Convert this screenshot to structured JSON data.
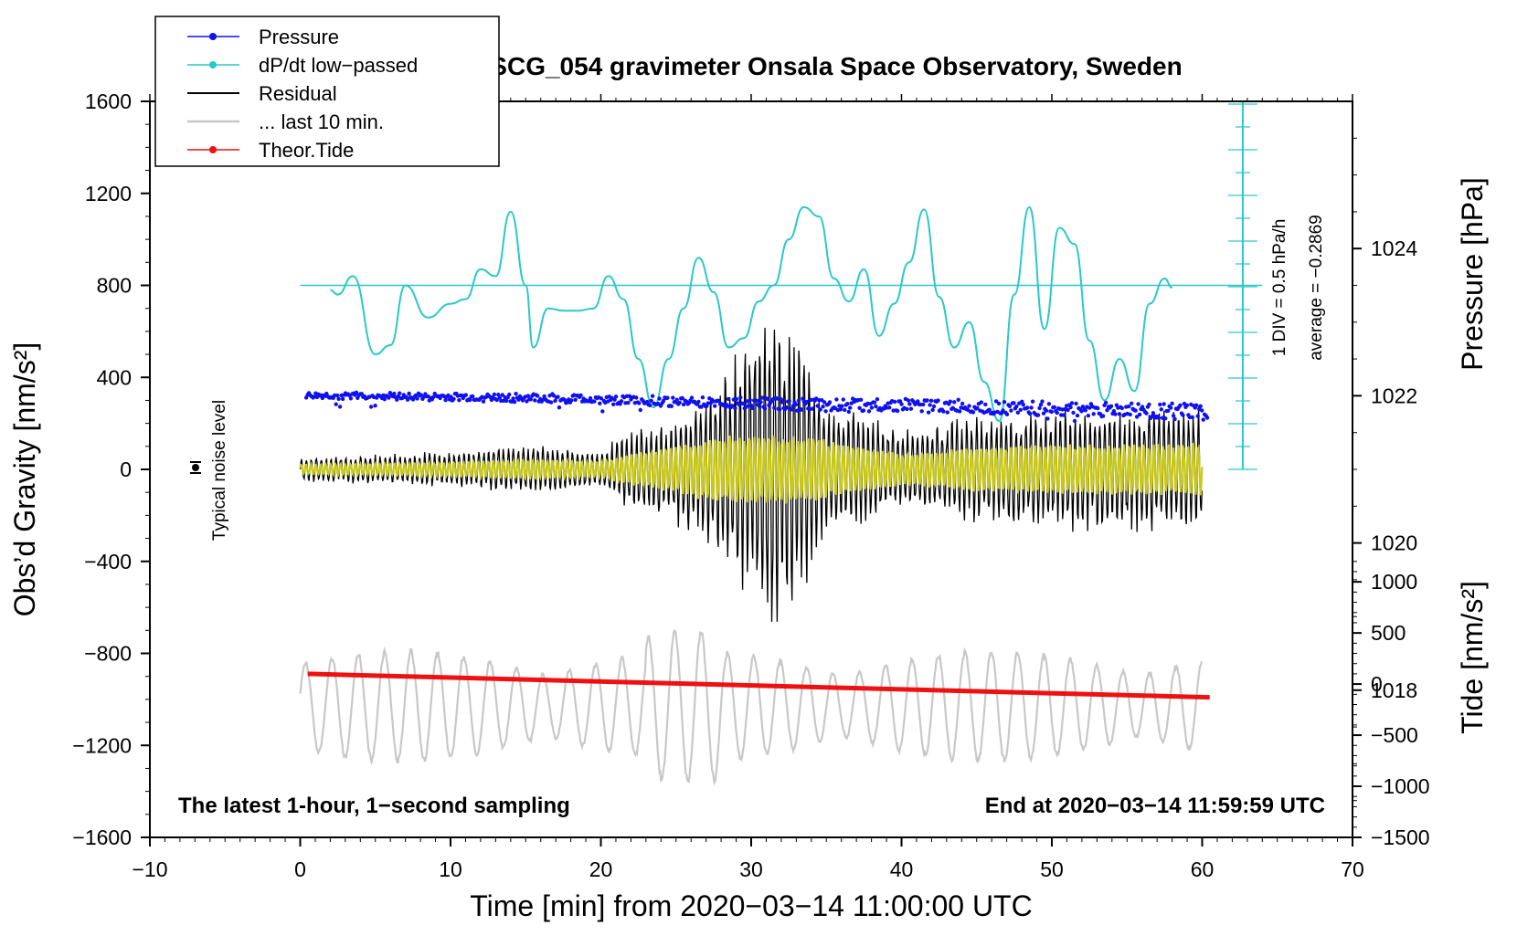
{
  "chart_data": {
    "type": "line",
    "title": "SCG_054 gravimeter Onsala Space Observatory, Sweden",
    "xlabel": "Time [min] from 2020−03−14 11:00:00 UTC",
    "ylabel_left": "Obs’d Gravity [nm/s²]",
    "ylabel_right_top": "Pressure [hPa]",
    "ylabel_right_bottom": "Tide [nm/s²]",
    "xlim": [
      -10,
      70
    ],
    "ylim": [
      -1600,
      1600
    ],
    "pressure_ylim": [
      1016,
      1026
    ],
    "tide_ylim": [
      -1500,
      1500
    ],
    "x_ticks": [
      "−10",
      "0",
      "10",
      "20",
      "30",
      "40",
      "50",
      "60",
      "70"
    ],
    "y_ticks": [
      "1600",
      "1200",
      "800",
      "400",
      "0",
      "−400",
      "−800",
      "−1200",
      "−1600"
    ],
    "pressure_ticks": [
      "1024",
      "1022",
      "1020",
      "1018"
    ],
    "tide_ticks": [
      "1000",
      "500",
      "0",
      "−500",
      "−1000",
      "−1500"
    ],
    "legend": [
      "Pressure",
      "dP/dt low−passed",
      "Residual",
      "... last 10 min.",
      "Theor.Tide"
    ],
    "colors": {
      "pressure": "#1010f0",
      "dpdt": "#2ac8c8",
      "residual": "#000000",
      "last10": "#c8c8c8",
      "tide": "#ee1111",
      "yellow": "#c8c81a"
    },
    "dpdt_scale_label": "1 DIV = 0.5 hPa/h",
    "dpdt_average_label": "average = −0.2869",
    "noise_label": "Typical noise level",
    "bottom_left_note": "The latest 1-hour, 1−second sampling",
    "bottom_right_note": "End at 2020−03−14 11:59:59 UTC",
    "pressure_series": {
      "x": [
        0,
        5,
        10,
        15,
        20,
        25,
        30,
        35,
        40,
        45,
        50,
        55,
        60
      ],
      "y": [
        1022.0,
        1022.0,
        1021.98,
        1021.97,
        1021.95,
        1021.92,
        1021.9,
        1021.88,
        1021.87,
        1021.85,
        1021.82,
        1021.8,
        1021.78
      ]
    },
    "dpdt_series_gravity_units": {
      "x": [
        2,
        2.5,
        3.5,
        5,
        6,
        7,
        8.5,
        10,
        11,
        12,
        13,
        14,
        15,
        15.5,
        16.5,
        17.5,
        18.5,
        19.5,
        20.5,
        21.5,
        22.5,
        23.5,
        24.5,
        25.5,
        26.5,
        27.5,
        28.5,
        29.5,
        30.5,
        31.5,
        32.5,
        33.5,
        34.5,
        35.5,
        36.5,
        37.5,
        38.5,
        39.5,
        40.5,
        41.5,
        42.5,
        43.5,
        44.5,
        45.5,
        46.5,
        47.5,
        48.5,
        49.5,
        50.5,
        51.5,
        52.5,
        53.5,
        54.5,
        55.5,
        56.5,
        57.5,
        58
      ],
      "y": [
        780,
        760,
        840,
        500,
        540,
        800,
        660,
        720,
        740,
        870,
        840,
        1120,
        800,
        530,
        700,
        690,
        690,
        700,
        840,
        740,
        480,
        270,
        480,
        700,
        920,
        770,
        530,
        570,
        730,
        800,
        1000,
        1140,
        1100,
        830,
        730,
        870,
        580,
        720,
        900,
        1130,
        750,
        530,
        640,
        380,
        210,
        760,
        1140,
        610,
        1050,
        980,
        560,
        300,
        480,
        340,
        720,
        830,
        790
      ]
    },
    "residual_envelope": {
      "x": [
        0,
        5,
        10,
        15,
        20,
        22,
        25,
        28,
        30,
        31.5,
        33,
        35,
        38,
        40,
        45,
        50,
        55,
        60
      ],
      "amplitude": [
        50,
        60,
        70,
        100,
        80,
        160,
        230,
        350,
        550,
        700,
        580,
        280,
        210,
        160,
        220,
        240,
        250,
        260
      ]
    },
    "theor_tide_series": {
      "x": [
        0.5,
        60.5
      ],
      "y": [
        100,
        -130
      ]
    },
    "last10_series": {
      "amplitude_gravity_units": 250,
      "center_gravity": -1030
    }
  }
}
